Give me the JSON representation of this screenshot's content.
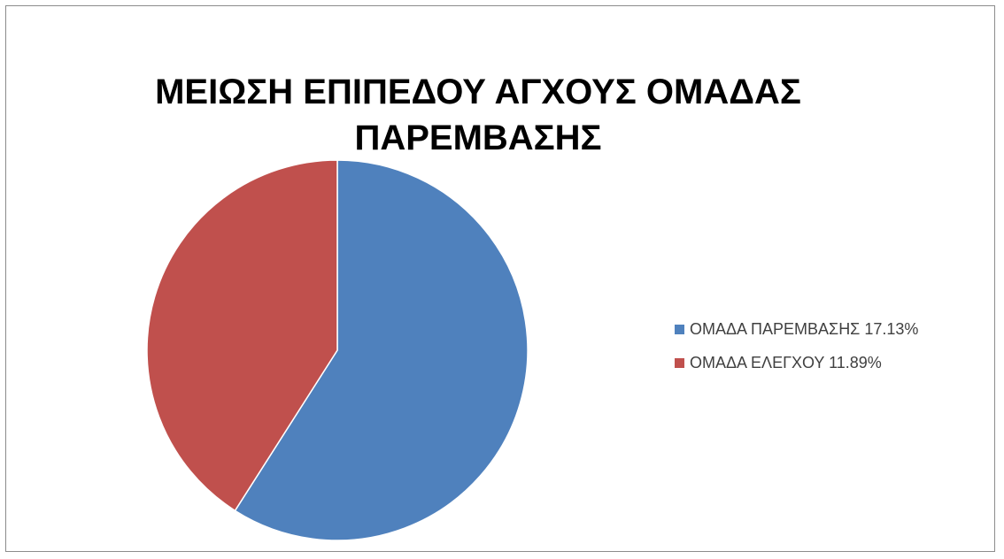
{
  "chart_data": {
    "type": "pie",
    "title": "ΜΕΙΩΣΗ ΕΠΙΠΕΔΟΥ ΑΓΧΟΥΣ ΟΜΑΔΑΣ ΠΑΡΕΜΒΑΣΗΣ",
    "categories": [
      "ΟΜΑΔΑ ΠΑΡΕΜΒΑΣΗΣ",
      "ΟΜΑΔΑ ΕΛΕΓΧΟΥ"
    ],
    "values": [
      17.13,
      11.89
    ],
    "legend_labels": [
      "ΟΜΑΔΑ ΠΑΡΕΜΒΑΣΗΣ 17.13%",
      "ΟΜΑΔΑ ΕΛΕΓΧΟΥ 11.89%"
    ],
    "colors": [
      "#4f81bd",
      "#c0504d"
    ],
    "legend_position": "right"
  }
}
